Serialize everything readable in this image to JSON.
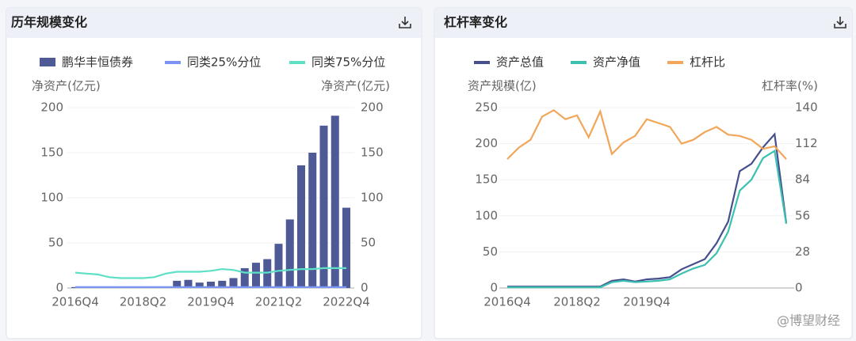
{
  "chart_data": [
    {
      "type": "bar",
      "title": "历年规模变化",
      "categories": [
        "2016Q4",
        null,
        null,
        null,
        null,
        null,
        "2018Q2",
        null,
        null,
        null,
        null,
        null,
        "2019Q4",
        null,
        null,
        null,
        null,
        null,
        "2021Q2",
        null,
        null,
        null,
        null,
        null,
        "2022Q4"
      ],
      "series": [
        {
          "name": "鹏华丰恒债券",
          "type": "bar",
          "color": "#4e5a96",
          "values": [
            1,
            0,
            0,
            0,
            0,
            0,
            0,
            0,
            0,
            8,
            9,
            6,
            7,
            8,
            11,
            22,
            28,
            32,
            49,
            76,
            136,
            150,
            180,
            191,
            89
          ]
        },
        {
          "name": "同类25%分位",
          "type": "line",
          "color": "#7b93f2",
          "values": [
            1,
            1,
            1,
            1,
            1,
            1,
            1,
            1,
            1,
            1,
            1,
            1,
            1,
            1,
            1,
            1,
            1,
            1,
            1,
            1,
            1,
            1,
            1,
            1,
            1
          ]
        },
        {
          "name": "同类75%分位",
          "type": "line",
          "color": "#5ee0c6",
          "values": [
            17,
            16,
            15,
            12,
            11,
            11,
            11,
            12,
            16,
            18,
            18,
            18,
            19,
            21,
            20,
            17,
            17,
            17,
            19,
            20,
            21,
            21,
            22,
            22,
            22
          ]
        }
      ],
      "ylabel": "净资产(亿元)",
      "y2label": "净资产(亿元)",
      "ylim": [
        0,
        200
      ],
      "yticks": [
        0,
        50,
        100,
        150,
        200
      ],
      "y2lim": [
        0,
        200
      ],
      "y2ticks": [
        0,
        50,
        100,
        150,
        200
      ],
      "grid": true
    },
    {
      "type": "line",
      "title": "杠杆率变化",
      "categories": [
        "2016Q4",
        null,
        null,
        null,
        null,
        null,
        "2018Q2",
        null,
        null,
        null,
        null,
        null,
        "2019Q4",
        null,
        null,
        null,
        null,
        null,
        null,
        null,
        null,
        null,
        null,
        null,
        null
      ],
      "series": [
        {
          "name": "资产总值",
          "color": "#454f8e",
          "values": [
            2,
            2,
            2,
            2,
            2,
            2,
            2,
            2,
            2,
            10,
            12,
            9,
            12,
            13,
            15,
            26,
            33,
            40,
            62,
            92,
            162,
            172,
            195,
            213,
            90
          ]
        },
        {
          "name": "资产净值",
          "color": "#3cc0b0",
          "values": [
            1,
            1,
            1,
            1,
            1,
            1,
            1,
            1,
            1,
            8,
            10,
            8,
            9,
            10,
            12,
            20,
            27,
            32,
            48,
            78,
            135,
            150,
            180,
            190,
            89
          ]
        },
        {
          "name": "杠杆比",
          "color": "#f2a65a",
          "axis": "y2",
          "values": [
            100,
            109,
            115,
            133,
            138,
            131,
            134,
            117,
            137,
            104,
            113,
            118,
            131,
            128,
            125,
            112,
            115,
            121,
            125,
            119,
            118,
            115,
            108,
            110,
            100
          ]
        }
      ],
      "ylabel": "资产规模(亿)",
      "y2label": "杠杆率(%)",
      "ylim": [
        0,
        250
      ],
      "yticks": [
        0,
        50,
        100,
        150,
        200,
        250
      ],
      "y2lim": [
        0,
        140
      ],
      "y2ticks": [
        0,
        28,
        56,
        84,
        112,
        140
      ],
      "grid": true
    }
  ],
  "watermark": "@博望财经"
}
